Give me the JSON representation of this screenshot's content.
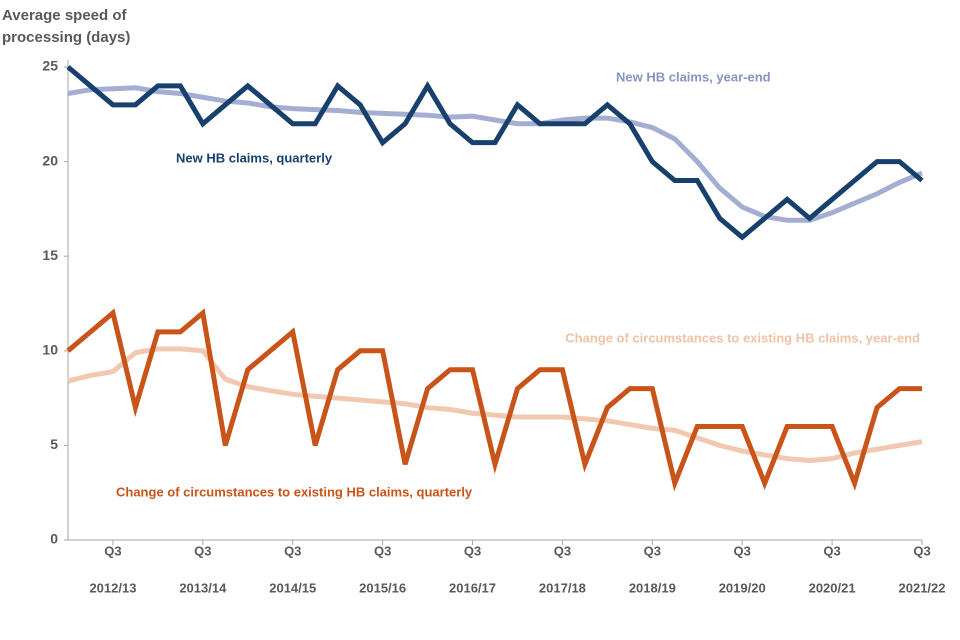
{
  "chart_data": {
    "type": "line",
    "y_label": [
      "Average speed of",
      "processing (days)"
    ],
    "categories": [
      null,
      null,
      [
        "Q3",
        "2012/13"
      ],
      null,
      null,
      null,
      [
        "Q3",
        "2013/14"
      ],
      null,
      null,
      null,
      [
        "Q3",
        "2014/15"
      ],
      null,
      null,
      null,
      [
        "Q3",
        "2015/16"
      ],
      null,
      null,
      null,
      [
        "Q3",
        "2016/17"
      ],
      null,
      null,
      null,
      [
        "Q3",
        "2017/18"
      ],
      null,
      null,
      null,
      [
        "Q3",
        "2018/19"
      ],
      null,
      null,
      null,
      [
        "Q3",
        "2019/20"
      ],
      null,
      null,
      null,
      [
        "Q3",
        "2020/21"
      ],
      null,
      null,
      null,
      [
        "Q3",
        "2021/22"
      ]
    ],
    "series": [
      {
        "name": "New HB claims, year-end",
        "color": "#a4aed2",
        "label_color": "#8595c0",
        "values": [
          23.6,
          23.8,
          23.85,
          23.9,
          23.7,
          23.6,
          23.4,
          23.2,
          23.1,
          22.9,
          22.8,
          22.75,
          22.7,
          22.6,
          22.55,
          22.5,
          22.45,
          22.35,
          22.4,
          22.2,
          22.0,
          22.0,
          22.2,
          22.3,
          22.3,
          22.1,
          21.8,
          21.2,
          20.0,
          18.6,
          17.6,
          17.1,
          16.9,
          16.9,
          17.3,
          17.8,
          18.3,
          18.9,
          19.4
        ]
      },
      {
        "name": "New HB claims, quarterly",
        "color": "#17406d",
        "label_color": "#17406d",
        "values": [
          25,
          24,
          23,
          23,
          24,
          24,
          22,
          23,
          24,
          23,
          22,
          22,
          24,
          23,
          21,
          22,
          24,
          22,
          21,
          21,
          23,
          22,
          22,
          22,
          23,
          22,
          20,
          19,
          19,
          17,
          16,
          17,
          18,
          17,
          18,
          19,
          20,
          20,
          19
        ]
      },
      {
        "name": "Change of circumstances to existing HB claims, year-end",
        "color": "#f2c9b0",
        "label_color": "#f0c2a6",
        "values": [
          8.4,
          8.7,
          8.9,
          9.9,
          10.1,
          10.1,
          10.0,
          8.5,
          8.1,
          7.9,
          7.7,
          7.6,
          7.5,
          7.4,
          7.3,
          7.2,
          7.0,
          6.9,
          6.7,
          6.6,
          6.5,
          6.5,
          6.5,
          6.4,
          6.3,
          6.1,
          5.9,
          5.8,
          5.4,
          5.0,
          4.7,
          4.5,
          4.3,
          4.2,
          4.3,
          4.6,
          4.8,
          5.0,
          5.2
        ]
      },
      {
        "name": "Change of circumstances to existing HB claims, quarterly",
        "color": "#c9541a",
        "label_color": "#c9541a",
        "values": [
          10,
          11,
          12,
          7,
          11,
          11,
          12,
          5,
          9,
          10,
          11,
          5,
          9,
          10,
          10,
          4,
          8,
          9,
          9,
          4,
          8,
          9,
          9,
          4,
          7,
          8,
          8,
          3,
          6,
          6,
          6,
          3,
          6,
          6,
          6,
          3,
          7,
          8,
          8
        ]
      }
    ],
    "ylim": [
      0,
      25
    ],
    "yticks": [
      0,
      5,
      10,
      15,
      20,
      25
    ],
    "grid": false
  }
}
